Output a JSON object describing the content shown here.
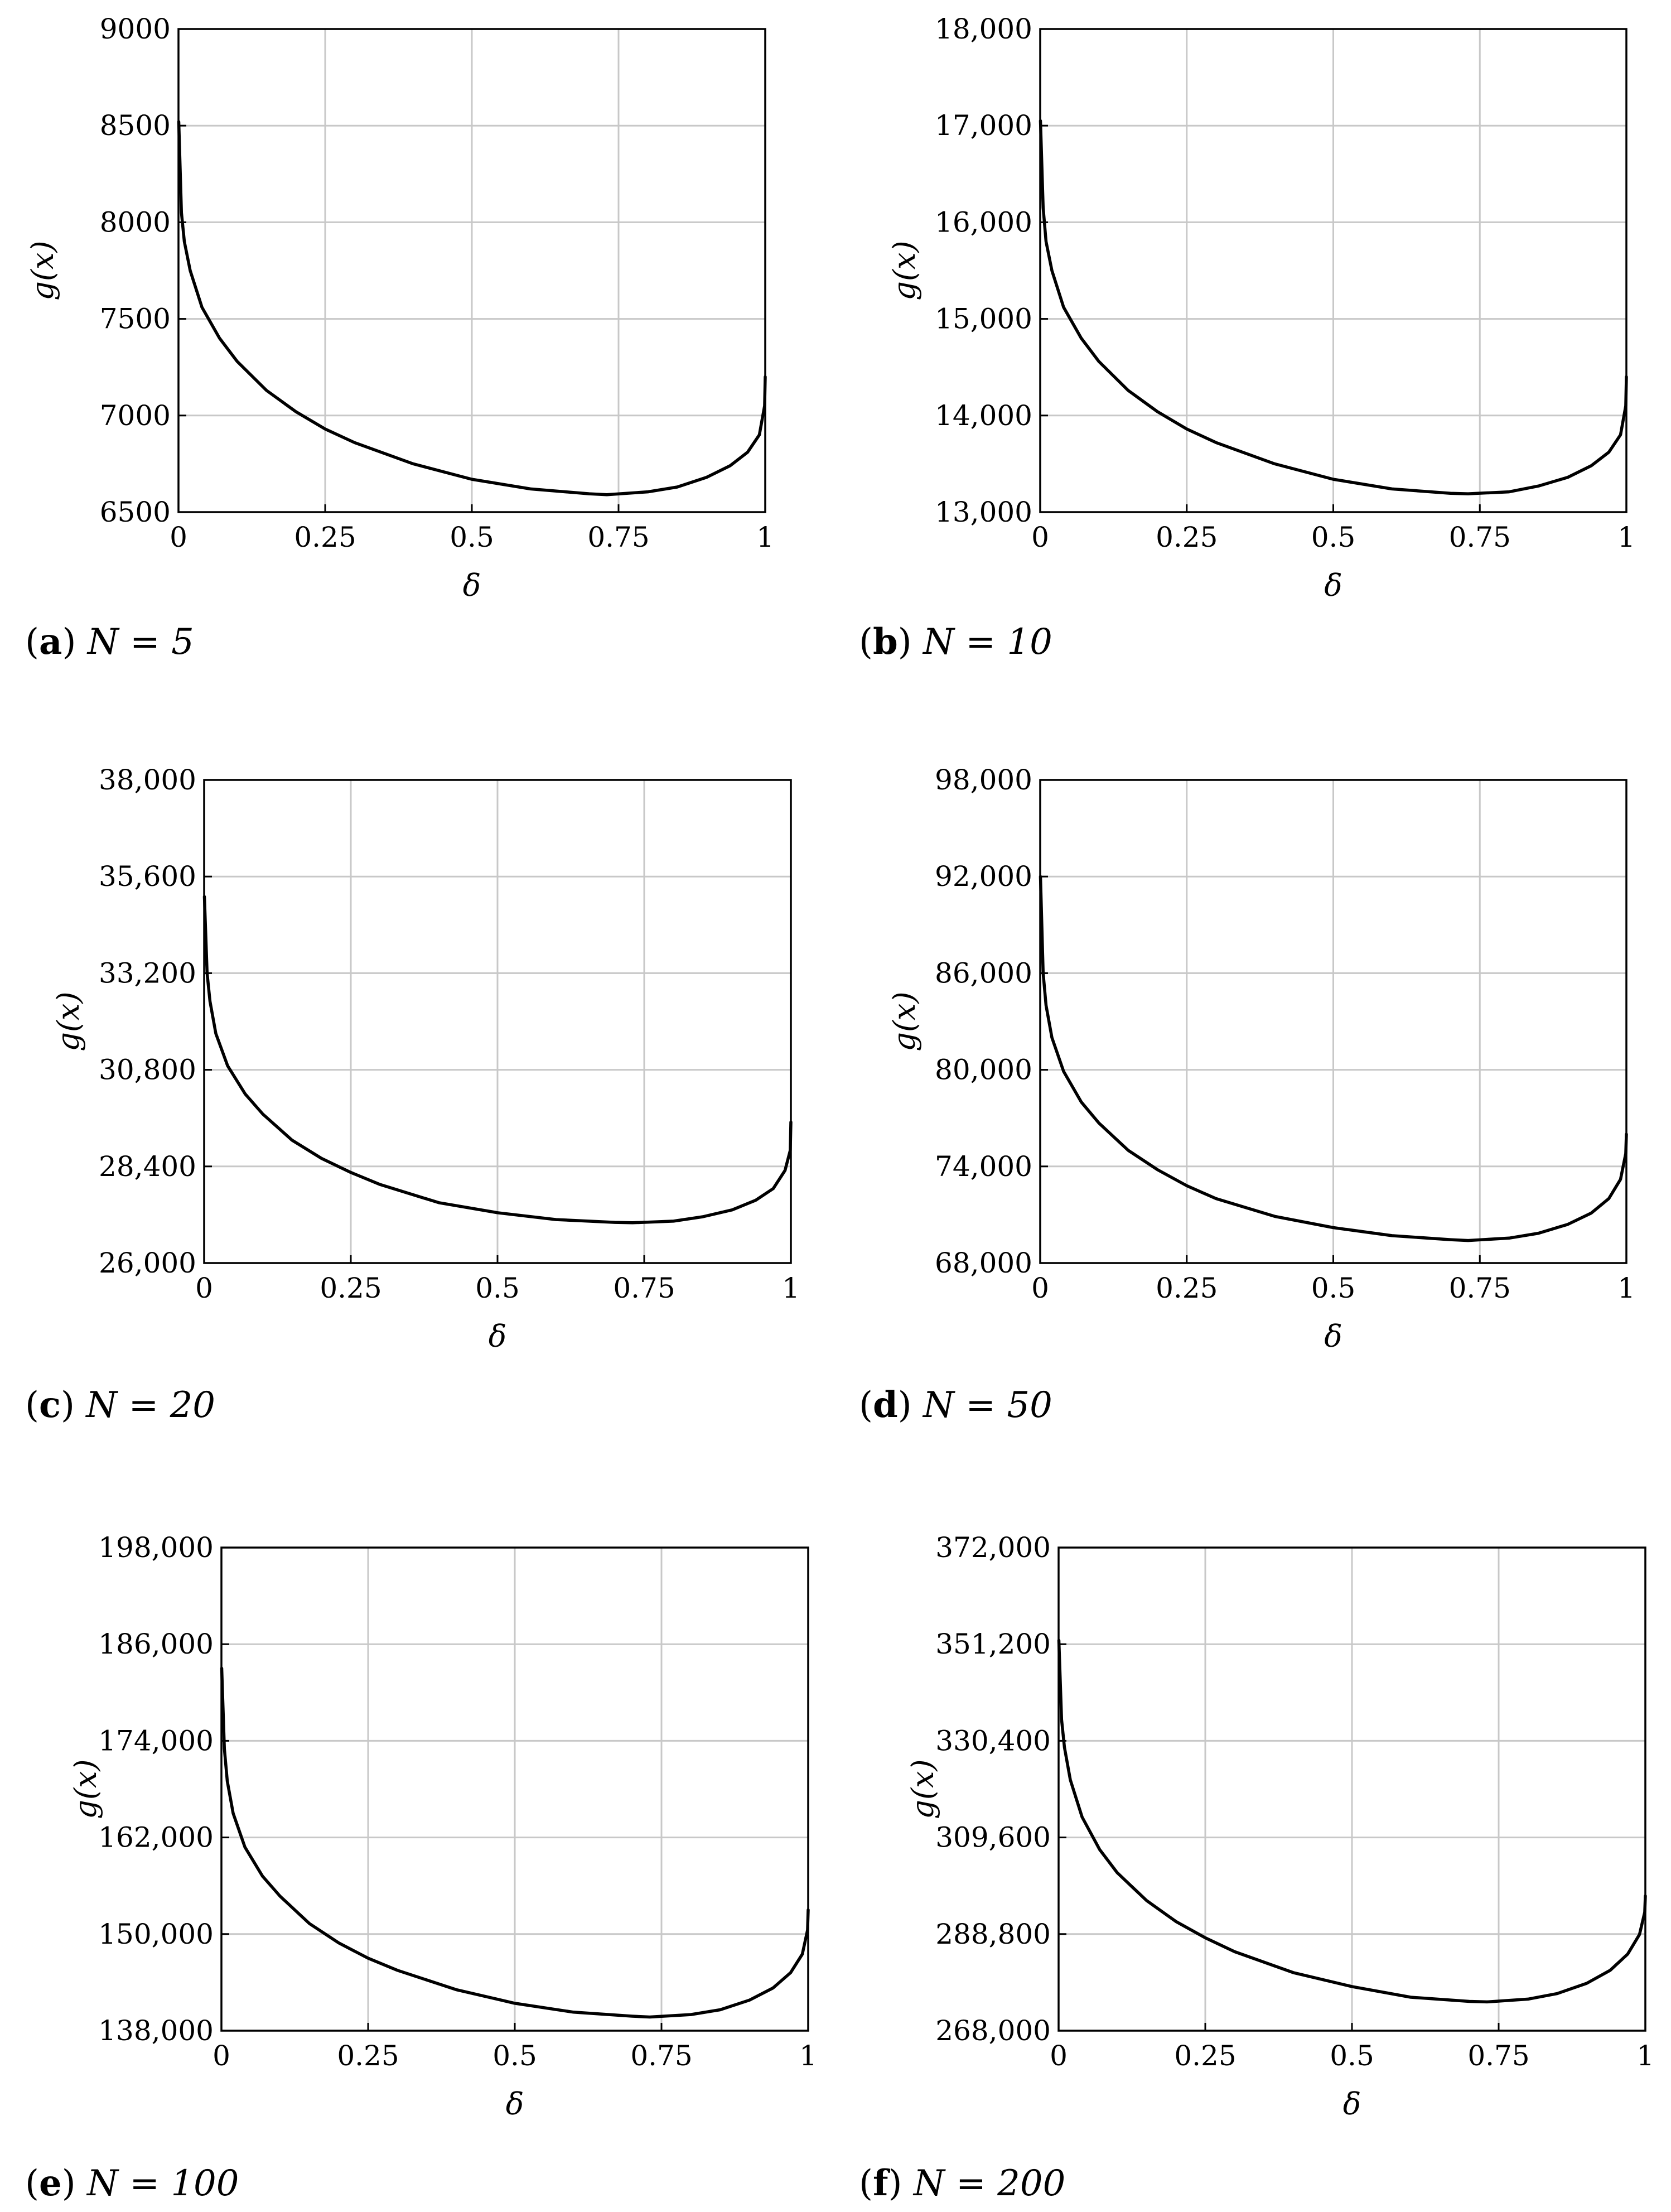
{
  "chart_data": [
    {
      "type": "line",
      "panel_label": "a",
      "caption": "N = 5",
      "xlabel": "δ",
      "ylabel": "g(x)",
      "xlim": [
        0,
        1
      ],
      "ylim": [
        6500,
        9000
      ],
      "x_ticks": [
        "0",
        "0.25",
        "0.5",
        "0.75",
        "1"
      ],
      "y_ticks": [
        "6500",
        "7000",
        "7500",
        "8000",
        "8500",
        "9000"
      ],
      "grid": true,
      "series": [
        {
          "name": "g(x)",
          "x": [
            0.0005,
            0.005,
            0.01,
            0.02,
            0.04,
            0.07,
            0.1,
            0.15,
            0.2,
            0.25,
            0.3,
            0.4,
            0.5,
            0.6,
            0.7,
            0.73,
            0.8,
            0.85,
            0.9,
            0.94,
            0.97,
            0.99,
            0.999,
            1.0
          ],
          "y": [
            8520,
            8050,
            7900,
            7750,
            7560,
            7400,
            7280,
            7130,
            7020,
            6930,
            6860,
            6750,
            6670,
            6620,
            6595,
            6590,
            6605,
            6630,
            6680,
            6740,
            6810,
            6900,
            7050,
            7200
          ]
        }
      ]
    },
    {
      "type": "line",
      "panel_label": "b",
      "caption": "N = 10",
      "xlabel": "δ",
      "ylabel": "g(x)",
      "xlim": [
        0,
        1
      ],
      "ylim": [
        13000,
        18000
      ],
      "x_ticks": [
        "0",
        "0.25",
        "0.5",
        "0.75",
        "1"
      ],
      "y_ticks": [
        "13,000",
        "14,000",
        "15,000",
        "16,000",
        "17,000",
        "18,000"
      ],
      "grid": true,
      "series": [
        {
          "name": "g(x)",
          "x": [
            0.0005,
            0.005,
            0.01,
            0.02,
            0.04,
            0.07,
            0.1,
            0.15,
            0.2,
            0.25,
            0.3,
            0.4,
            0.5,
            0.6,
            0.7,
            0.73,
            0.8,
            0.85,
            0.9,
            0.94,
            0.97,
            0.99,
            0.999,
            1.0
          ],
          "y": [
            17050,
            16150,
            15800,
            15500,
            15120,
            14800,
            14560,
            14260,
            14040,
            13860,
            13720,
            13500,
            13340,
            13240,
            13195,
            13190,
            13210,
            13270,
            13360,
            13480,
            13620,
            13800,
            14100,
            14400
          ]
        }
      ]
    },
    {
      "type": "line",
      "panel_label": "c",
      "caption": "N = 20",
      "xlabel": "δ",
      "ylabel": "g(x)",
      "xlim": [
        0,
        1
      ],
      "ylim": [
        26000,
        38000
      ],
      "x_ticks": [
        "0",
        "0.25",
        "0.5",
        "0.75",
        "1"
      ],
      "y_ticks": [
        "26,000",
        "28,400",
        "30,800",
        "33,200",
        "35,600",
        "38,000"
      ],
      "grid": true,
      "series": [
        {
          "name": "g(x)",
          "x": [
            0.0005,
            0.005,
            0.01,
            0.02,
            0.04,
            0.07,
            0.1,
            0.15,
            0.2,
            0.25,
            0.3,
            0.4,
            0.5,
            0.6,
            0.7,
            0.73,
            0.8,
            0.85,
            0.9,
            0.94,
            0.97,
            0.99,
            0.999,
            1.0
          ],
          "y": [
            35100,
            33200,
            32500,
            31700,
            30900,
            30200,
            29700,
            29050,
            28600,
            28250,
            27950,
            27500,
            27250,
            27080,
            27010,
            27000,
            27040,
            27150,
            27320,
            27560,
            27850,
            28300,
            28800,
            29500
          ]
        }
      ]
    },
    {
      "type": "line",
      "panel_label": "d",
      "caption": "N = 50",
      "xlabel": "δ",
      "ylabel": "g(x)",
      "xlim": [
        0,
        1
      ],
      "ylim": [
        68000,
        98000
      ],
      "x_ticks": [
        "0",
        "0.25",
        "0.5",
        "0.75",
        "1"
      ],
      "y_ticks": [
        "68,000",
        "74,000",
        "80,000",
        "86,000",
        "92,000",
        "98,000"
      ],
      "grid": true,
      "series": [
        {
          "name": "g(x)",
          "x": [
            0.0005,
            0.005,
            0.01,
            0.02,
            0.04,
            0.07,
            0.1,
            0.15,
            0.2,
            0.25,
            0.3,
            0.4,
            0.5,
            0.6,
            0.7,
            0.73,
            0.8,
            0.85,
            0.9,
            0.94,
            0.97,
            0.99,
            0.999,
            1.0
          ],
          "y": [
            92000,
            86000,
            84000,
            82000,
            79900,
            78000,
            76700,
            75000,
            73800,
            72800,
            72000,
            70900,
            70200,
            69700,
            69450,
            69400,
            69550,
            69850,
            70400,
            71100,
            72000,
            73200,
            74800,
            76000
          ]
        }
      ]
    },
    {
      "type": "line",
      "panel_label": "e",
      "caption": "N = 100",
      "xlabel": "δ",
      "ylabel": "g(x)",
      "xlim": [
        0,
        1
      ],
      "ylim": [
        138000,
        198000
      ],
      "x_ticks": [
        "0",
        "0.25",
        "0.5",
        "0.75",
        "1"
      ],
      "y_ticks": [
        "138,000",
        "150,000",
        "162,000",
        "174,000",
        "186,000",
        "198,000"
      ],
      "grid": true,
      "series": [
        {
          "name": "g(x)",
          "x": [
            0.0005,
            0.005,
            0.01,
            0.02,
            0.04,
            0.07,
            0.1,
            0.15,
            0.2,
            0.25,
            0.3,
            0.4,
            0.5,
            0.6,
            0.7,
            0.73,
            0.8,
            0.85,
            0.9,
            0.94,
            0.97,
            0.99,
            0.999,
            1.0
          ],
          "y": [
            183000,
            173000,
            169000,
            165000,
            160800,
            157200,
            154700,
            151300,
            148900,
            147000,
            145500,
            143100,
            141400,
            140300,
            139800,
            139700,
            140000,
            140600,
            141800,
            143300,
            145200,
            147500,
            150500,
            153000
          ]
        }
      ]
    },
    {
      "type": "line",
      "panel_label": "f",
      "caption": "N = 200",
      "xlabel": "δ",
      "ylabel": "g(x)",
      "xlim": [
        0,
        1
      ],
      "ylim": [
        268000,
        372000
      ],
      "x_ticks": [
        "0",
        "0.25",
        "0.5",
        "0.75",
        "1"
      ],
      "y_ticks": [
        "268,000",
        "288,800",
        "309,600",
        "330,400",
        "351,200",
        "372,000"
      ],
      "grid": true,
      "series": [
        {
          "name": "g(x)",
          "x": [
            0.0005,
            0.005,
            0.01,
            0.02,
            0.04,
            0.07,
            0.1,
            0.15,
            0.2,
            0.25,
            0.3,
            0.4,
            0.5,
            0.6,
            0.7,
            0.73,
            0.8,
            0.85,
            0.9,
            0.94,
            0.97,
            0.99,
            0.999,
            1.0
          ],
          "y": [
            352000,
            335000,
            329000,
            322000,
            314000,
            307000,
            302000,
            296000,
            291500,
            288000,
            285000,
            280500,
            277500,
            275200,
            274300,
            274200,
            274800,
            276000,
            278200,
            281000,
            284500,
            288700,
            293500,
            297000
          ]
        }
      ]
    }
  ]
}
